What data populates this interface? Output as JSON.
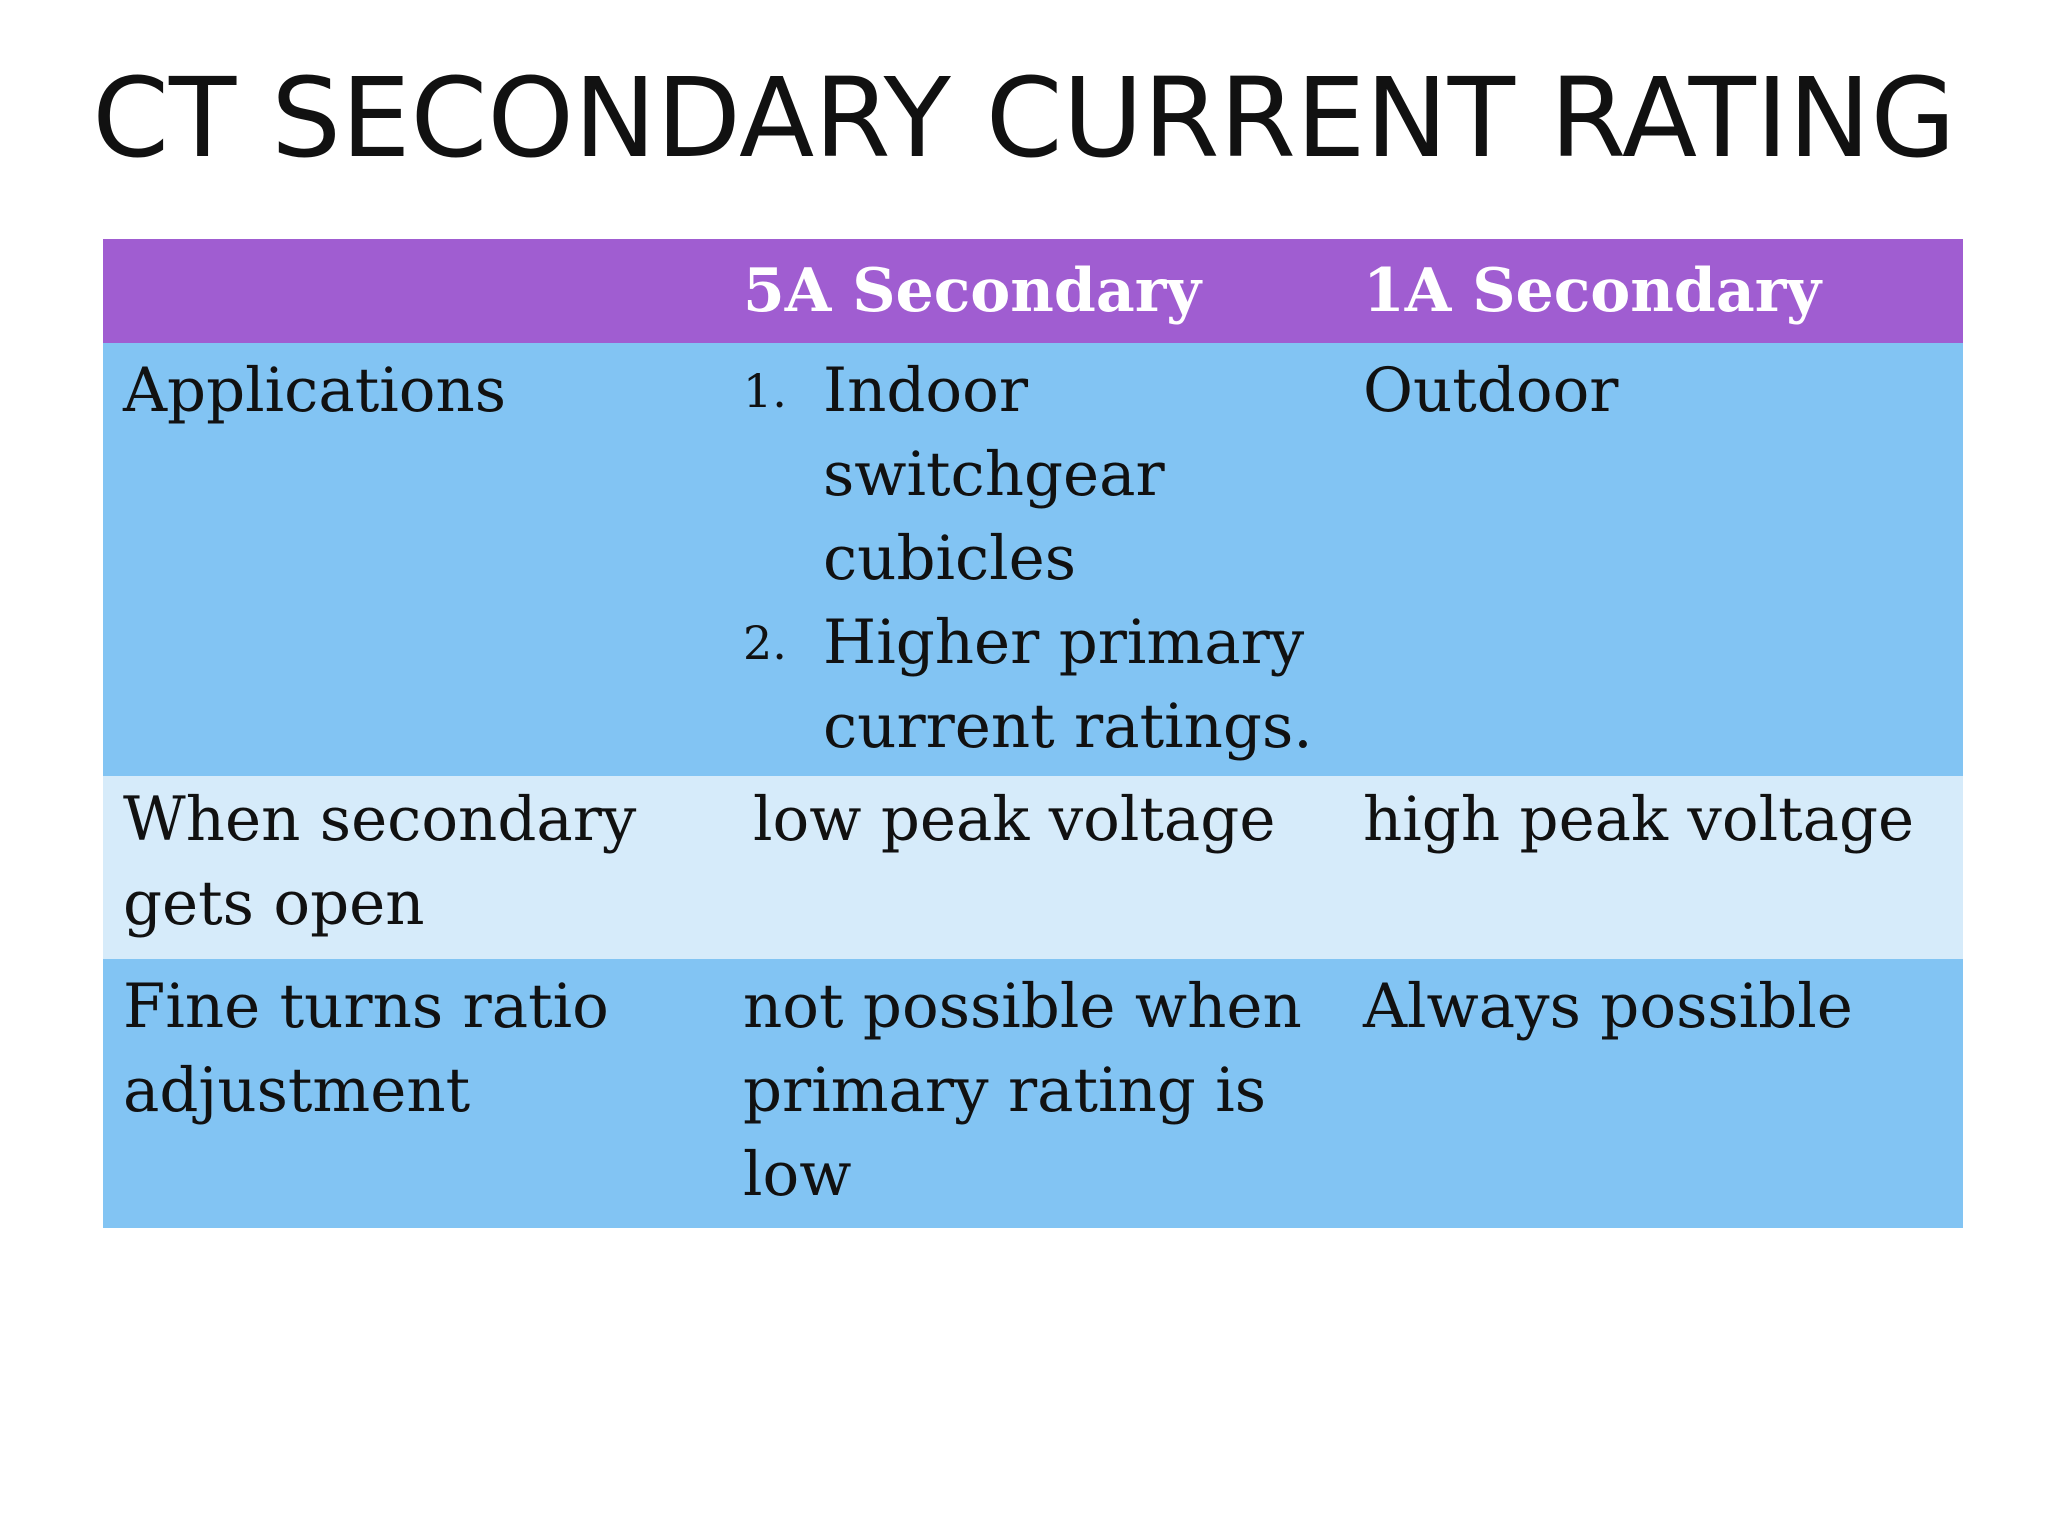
{
  "slide": {
    "title": "CT SECONDARY CURRENT RATING"
  },
  "table": {
    "headers": [
      "",
      "5A Secondary",
      "1A Secondary"
    ],
    "rows": [
      {
        "label": "Applications",
        "col_5a_list": [
          {
            "num": "1.",
            "text": "Indoor switchgear cubicles"
          },
          {
            "num": "2.",
            "text": "Higher primary current ratings."
          }
        ],
        "col_1a": "Outdoor"
      },
      {
        "label": "When secondary gets open",
        "col_5a": "low peak voltage",
        "col_1a": "high peak voltage"
      },
      {
        "label": "Fine turns ratio adjustment",
        "col_5a": "not possible when primary rating is low",
        "col_1a": "Always possible"
      }
    ]
  }
}
